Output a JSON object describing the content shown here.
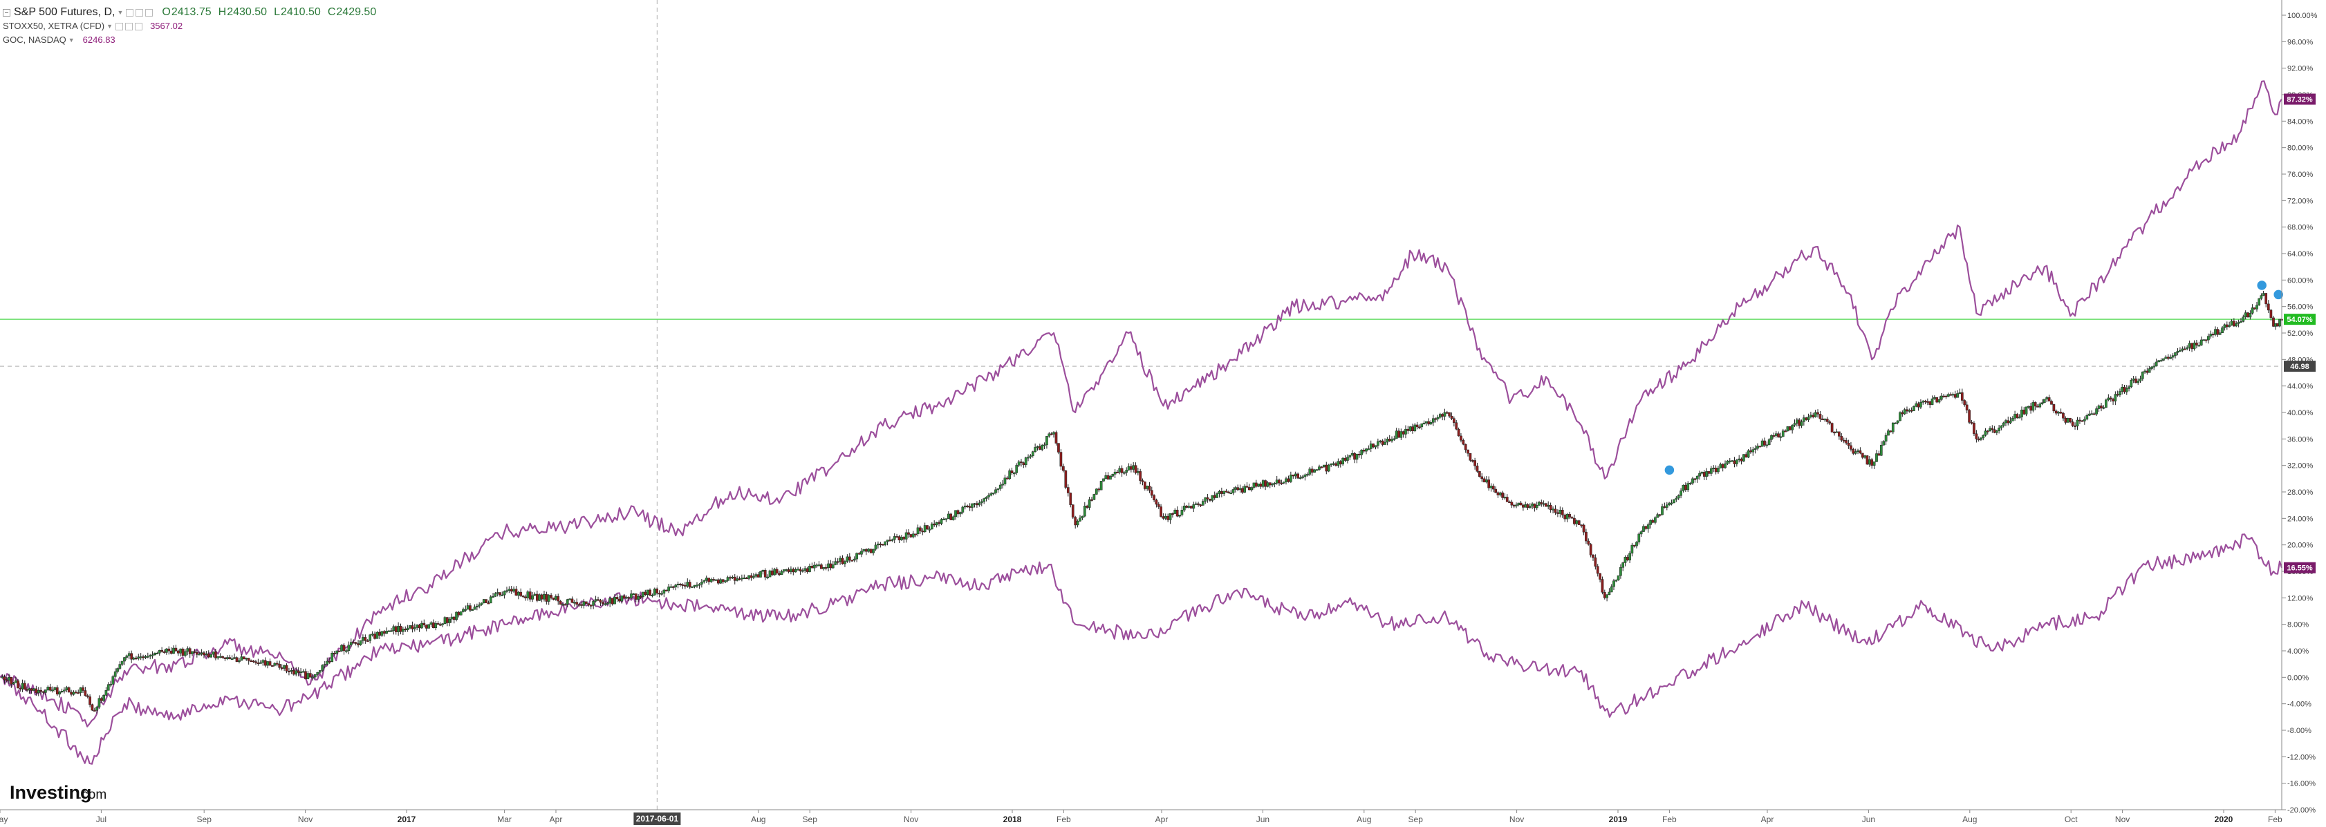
{
  "legend": {
    "main": {
      "title": "S&P 500 Futures, D,",
      "open_label": "O",
      "open": "2413.75",
      "high_label": "H",
      "high": "2430.50",
      "low_label": "L",
      "low": "2410.50",
      "close_label": "C",
      "close": "2429.50"
    },
    "compare": [
      {
        "title": "STOXX50, XETRA (CFD)",
        "value": "3567.02"
      },
      {
        "title": "GOC, NASDAQ",
        "value": "6246.83"
      }
    ]
  },
  "watermark": {
    "brand": "Investing",
    "suffix": ".com"
  },
  "colors": {
    "compare_line": "#9c4f9c",
    "up_candle": "#2e8b3a",
    "down_candle": "#8b1d1d",
    "price_line": "#66dd66",
    "price_badge": "#22bb22",
    "purple_badge": "#7a1b6a",
    "crosshair_badge": "#444444",
    "event_marker": "#3399dd",
    "grid_axis": "#888888"
  },
  "crosshair": {
    "date_label": "2017-06-01",
    "value_label": "46.98"
  },
  "chart_data": {
    "type": "line",
    "yaxis": {
      "unit": "%",
      "range": [
        -20,
        100
      ],
      "ticks": [
        "100.00%",
        "96.00%",
        "92.00%",
        "88.00%",
        "84.00%",
        "80.00%",
        "76.00%",
        "72.00%",
        "68.00%",
        "64.00%",
        "60.00%",
        "56.00%",
        "52.00%",
        "48.00%",
        "44.00%",
        "40.00%",
        "36.00%",
        "32.00%",
        "28.00%",
        "24.00%",
        "20.00%",
        "16.00%",
        "12.00%",
        "8.00%",
        "4.00%",
        "0.00%",
        "-4.00%",
        "-8.00%",
        "-12.00%",
        "-16.00%",
        "-20.00%"
      ]
    },
    "xaxis": {
      "range": [
        "2016-05-01",
        "2020-02-05"
      ],
      "ticks": [
        {
          "date": "2016-05-01",
          "label": "May"
        },
        {
          "date": "2016-07-01",
          "label": "Jul"
        },
        {
          "date": "2016-09-01",
          "label": "Sep"
        },
        {
          "date": "2016-11-01",
          "label": "Nov"
        },
        {
          "date": "2017-01-01",
          "label": "2017"
        },
        {
          "date": "2017-03-01",
          "label": "Mar"
        },
        {
          "date": "2017-04-01",
          "label": "Apr"
        },
        {
          "date": "2017-08-01",
          "label": "Aug"
        },
        {
          "date": "2017-09-01",
          "label": "Sep"
        },
        {
          "date": "2017-11-01",
          "label": "Nov"
        },
        {
          "date": "2018-01-01",
          "label": "2018"
        },
        {
          "date": "2018-02-01",
          "label": "Feb"
        },
        {
          "date": "2018-04-01",
          "label": "Apr"
        },
        {
          "date": "2018-06-01",
          "label": "Jun"
        },
        {
          "date": "2018-08-01",
          "label": "Aug"
        },
        {
          "date": "2018-09-01",
          "label": "Sep"
        },
        {
          "date": "2018-11-01",
          "label": "Nov"
        },
        {
          "date": "2019-01-01",
          "label": "2019"
        },
        {
          "date": "2019-02-01",
          "label": "Feb"
        },
        {
          "date": "2019-04-01",
          "label": "Apr"
        },
        {
          "date": "2019-06-01",
          "label": "Jun"
        },
        {
          "date": "2019-08-01",
          "label": "Aug"
        },
        {
          "date": "2019-10-01",
          "label": "Oct"
        },
        {
          "date": "2019-11-01",
          "label": "Nov"
        },
        {
          "date": "2020-01-01",
          "label": "2020"
        },
        {
          "date": "2020-02-01",
          "label": "Feb"
        }
      ]
    },
    "grid": false,
    "crosshair": {
      "date": "2017-06-01",
      "value": 46.98
    },
    "price_line": {
      "value": 54.07,
      "label": "54.07%"
    },
    "series": [
      {
        "name": "S&P 500 Futures",
        "style": "candles",
        "points": [
          [
            "2016-05-01",
            0
          ],
          [
            "2016-05-20",
            -2
          ],
          [
            "2016-06-20",
            -2
          ],
          [
            "2016-06-27",
            -5
          ],
          [
            "2016-07-15",
            3
          ],
          [
            "2016-08-15",
            4
          ],
          [
            "2016-09-15",
            3
          ],
          [
            "2016-10-15",
            2
          ],
          [
            "2016-11-04",
            0
          ],
          [
            "2016-11-20",
            4
          ],
          [
            "2016-12-20",
            7
          ],
          [
            "2017-01-20",
            8
          ],
          [
            "2017-03-01",
            13
          ],
          [
            "2017-04-15",
            11
          ],
          [
            "2017-05-15",
            12
          ],
          [
            "2017-06-15",
            14
          ],
          [
            "2017-07-15",
            15
          ],
          [
            "2017-08-15",
            16
          ],
          [
            "2017-09-15",
            17
          ],
          [
            "2017-10-15",
            20
          ],
          [
            "2017-11-15",
            23
          ],
          [
            "2017-12-15",
            27
          ],
          [
            "2018-01-26",
            37
          ],
          [
            "2018-02-08",
            23
          ],
          [
            "2018-02-25",
            30
          ],
          [
            "2018-03-15",
            32
          ],
          [
            "2018-04-02",
            24
          ],
          [
            "2018-05-10",
            28
          ],
          [
            "2018-06-15",
            30
          ],
          [
            "2018-07-15",
            32
          ],
          [
            "2018-08-15",
            36
          ],
          [
            "2018-09-20",
            40
          ],
          [
            "2018-10-11",
            30
          ],
          [
            "2018-10-29",
            26
          ],
          [
            "2018-11-20",
            26
          ],
          [
            "2018-12-10",
            23
          ],
          [
            "2018-12-24",
            12
          ],
          [
            "2019-01-15",
            22
          ],
          [
            "2019-02-15",
            30
          ],
          [
            "2019-03-15",
            33
          ],
          [
            "2019-04-30",
            40
          ],
          [
            "2019-05-20",
            35
          ],
          [
            "2019-06-03",
            32
          ],
          [
            "2019-06-20",
            40
          ],
          [
            "2019-07-26",
            43
          ],
          [
            "2019-08-05",
            36
          ],
          [
            "2019-08-20",
            38
          ],
          [
            "2019-09-15",
            42
          ],
          [
            "2019-10-02",
            38
          ],
          [
            "2019-10-25",
            42
          ],
          [
            "2019-11-20",
            47
          ],
          [
            "2019-12-20",
            51
          ],
          [
            "2020-01-17",
            55
          ],
          [
            "2020-01-25",
            58
          ],
          [
            "2020-01-31",
            53
          ],
          [
            "2020-02-05",
            54.07
          ]
        ]
      },
      {
        "name": "STOXX50, XETRA (CFD)",
        "style": "line",
        "label": "16.55%",
        "points": [
          [
            "2016-05-01",
            0
          ],
          [
            "2016-05-25",
            -5
          ],
          [
            "2016-06-24",
            -13
          ],
          [
            "2016-07-15",
            -4
          ],
          [
            "2016-08-15",
            -6
          ],
          [
            "2016-09-15",
            -3
          ],
          [
            "2016-10-15",
            -5
          ],
          [
            "2016-11-04",
            -3
          ],
          [
            "2016-12-15",
            4
          ],
          [
            "2017-01-15",
            5
          ],
          [
            "2017-03-01",
            8
          ],
          [
            "2017-04-15",
            11
          ],
          [
            "2017-05-15",
            12
          ],
          [
            "2017-06-15",
            11
          ],
          [
            "2017-07-15",
            10
          ],
          [
            "2017-08-15",
            9
          ],
          [
            "2017-09-15",
            11
          ],
          [
            "2017-10-15",
            14
          ],
          [
            "2017-11-15",
            15
          ],
          [
            "2017-12-15",
            14
          ],
          [
            "2018-01-23",
            17
          ],
          [
            "2018-02-08",
            8
          ],
          [
            "2018-03-23",
            6
          ],
          [
            "2018-05-15",
            13
          ],
          [
            "2018-06-25",
            9
          ],
          [
            "2018-07-25",
            11
          ],
          [
            "2018-08-15",
            8
          ],
          [
            "2018-09-20",
            9
          ],
          [
            "2018-10-11",
            4
          ],
          [
            "2018-11-15",
            1
          ],
          [
            "2018-12-10",
            1
          ],
          [
            "2018-12-27",
            -6
          ],
          [
            "2019-01-15",
            -3
          ],
          [
            "2019-02-15",
            1
          ],
          [
            "2019-03-15",
            5
          ],
          [
            "2019-04-23",
            11
          ],
          [
            "2019-05-31",
            5
          ],
          [
            "2019-07-04",
            11
          ],
          [
            "2019-08-15",
            4
          ],
          [
            "2019-09-15",
            8
          ],
          [
            "2019-10-15",
            9
          ],
          [
            "2019-11-15",
            17
          ],
          [
            "2019-12-15",
            18
          ],
          [
            "2020-01-15",
            21
          ],
          [
            "2020-01-31",
            16
          ],
          [
            "2020-02-05",
            16.55
          ]
        ]
      },
      {
        "name": "GOC, NASDAQ",
        "style": "line",
        "label": "87.32%",
        "points": [
          [
            "2016-05-01",
            0
          ],
          [
            "2016-05-25",
            -2
          ],
          [
            "2016-06-24",
            -7
          ],
          [
            "2016-07-15",
            1
          ],
          [
            "2016-08-15",
            2
          ],
          [
            "2016-09-15",
            5
          ],
          [
            "2016-10-15",
            3
          ],
          [
            "2016-11-04",
            -1
          ],
          [
            "2016-12-15",
            10
          ],
          [
            "2017-01-15",
            14
          ],
          [
            "2017-03-01",
            22
          ],
          [
            "2017-04-15",
            23
          ],
          [
            "2017-05-15",
            25
          ],
          [
            "2017-06-15",
            22
          ],
          [
            "2017-07-15",
            28
          ],
          [
            "2017-08-15",
            27
          ],
          [
            "2017-09-15",
            32
          ],
          [
            "2017-10-15",
            38
          ],
          [
            "2017-11-15",
            41
          ],
          [
            "2017-12-15",
            45
          ],
          [
            "2018-01-26",
            52
          ],
          [
            "2018-02-08",
            40
          ],
          [
            "2018-03-12",
            52
          ],
          [
            "2018-04-02",
            41
          ],
          [
            "2018-05-15",
            48
          ],
          [
            "2018-06-20",
            56
          ],
          [
            "2018-07-25",
            57
          ],
          [
            "2018-08-15",
            58
          ],
          [
            "2018-08-30",
            64
          ],
          [
            "2018-09-20",
            62
          ],
          [
            "2018-10-11",
            48
          ],
          [
            "2018-10-29",
            42
          ],
          [
            "2018-11-20",
            45
          ],
          [
            "2018-12-10",
            38
          ],
          [
            "2018-12-24",
            30
          ],
          [
            "2019-01-15",
            42
          ],
          [
            "2019-02-15",
            48
          ],
          [
            "2019-03-15",
            56
          ],
          [
            "2019-04-30",
            65
          ],
          [
            "2019-05-20",
            58
          ],
          [
            "2019-06-03",
            48
          ],
          [
            "2019-06-20",
            58
          ],
          [
            "2019-07-26",
            68
          ],
          [
            "2019-08-05",
            55
          ],
          [
            "2019-08-20",
            58
          ],
          [
            "2019-09-15",
            62
          ],
          [
            "2019-10-02",
            55
          ],
          [
            "2019-10-25",
            62
          ],
          [
            "2019-11-20",
            70
          ],
          [
            "2019-12-20",
            78
          ],
          [
            "2020-01-10",
            82
          ],
          [
            "2020-01-24",
            90
          ],
          [
            "2020-02-01",
            85
          ],
          [
            "2020-02-05",
            87.32
          ]
        ]
      }
    ]
  }
}
